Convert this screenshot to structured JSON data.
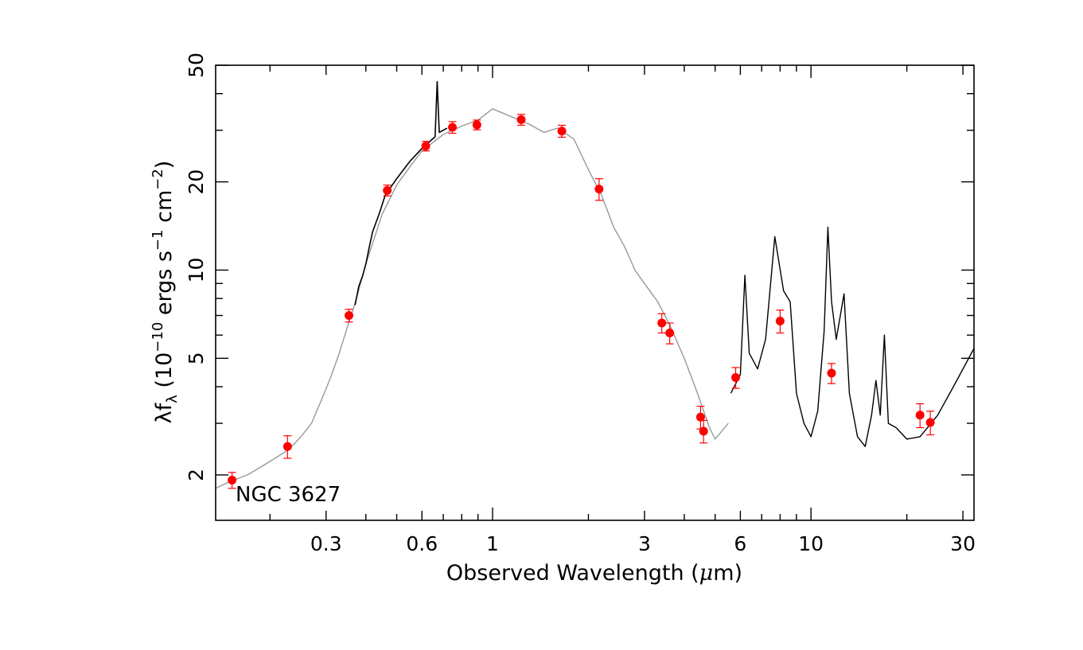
{
  "chart_data": {
    "type": "scatter",
    "title": "",
    "annotation": "NGC 3627",
    "xlabel": {
      "pre": "Observed Wavelength (",
      "mu": "μ",
      "post": "m)"
    },
    "ylabel": {
      "lambda": "λ",
      "f": "f",
      "sub": "λ",
      "pre": " (10",
      "sup1": "−10",
      "mid": " ergs s",
      "sup2": "−1",
      "cm": " cm",
      "sup3": "−2",
      "post": ")"
    },
    "x_scale": "log",
    "y_scale": "log",
    "xlim": [
      0.135,
      32.5
    ],
    "ylim": [
      1.4,
      50
    ],
    "x_tick_labels": [
      {
        "value": 0.3,
        "label": "0.3"
      },
      {
        "value": 0.6,
        "label": "0.6"
      },
      {
        "value": 1,
        "label": "1"
      },
      {
        "value": 3,
        "label": "3"
      },
      {
        "value": 6,
        "label": "6"
      },
      {
        "value": 10,
        "label": "10"
      },
      {
        "value": 30,
        "label": "30"
      }
    ],
    "y_tick_labels": [
      {
        "value": 2,
        "label": "2"
      },
      {
        "value": 5,
        "label": "5"
      },
      {
        "value": 10,
        "label": "10"
      },
      {
        "value": 20,
        "label": "20"
      },
      {
        "value": 50,
        "label": "50"
      }
    ],
    "colors": {
      "points": "#ff0000",
      "model": "#999999",
      "observed": "#000000",
      "axes": "#000000"
    },
    "photometry": [
      {
        "x": 0.152,
        "y": 1.92,
        "err": 0.12
      },
      {
        "x": 0.227,
        "y": 2.5,
        "err": 0.22
      },
      {
        "x": 0.354,
        "y": 7.0,
        "err": 0.35
      },
      {
        "x": 0.467,
        "y": 18.7,
        "err": 0.8
      },
      {
        "x": 0.617,
        "y": 26.5,
        "err": 1.0
      },
      {
        "x": 0.748,
        "y": 30.7,
        "err": 1.4
      },
      {
        "x": 0.893,
        "y": 31.3,
        "err": 1.2
      },
      {
        "x": 1.23,
        "y": 32.6,
        "err": 1.4
      },
      {
        "x": 1.65,
        "y": 29.8,
        "err": 1.4
      },
      {
        "x": 2.16,
        "y": 18.9,
        "err": 1.6
      },
      {
        "x": 3.4,
        "y": 6.6,
        "err": 0.5
      },
      {
        "x": 3.6,
        "y": 6.1,
        "err": 0.5
      },
      {
        "x": 4.5,
        "y": 3.15,
        "err": 0.28
      },
      {
        "x": 4.6,
        "y": 2.82,
        "err": 0.25
      },
      {
        "x": 5.8,
        "y": 4.3,
        "err": 0.35
      },
      {
        "x": 8.0,
        "y": 6.7,
        "err": 0.6
      },
      {
        "x": 11.6,
        "y": 4.45,
        "err": 0.35
      },
      {
        "x": 22.0,
        "y": 3.2,
        "err": 0.3
      },
      {
        "x": 23.7,
        "y": 3.02,
        "err": 0.28
      }
    ],
    "model_sed": [
      [
        0.135,
        1.8
      ],
      [
        0.15,
        1.9
      ],
      [
        0.17,
        2.0
      ],
      [
        0.19,
        2.15
      ],
      [
        0.21,
        2.3
      ],
      [
        0.23,
        2.45
      ],
      [
        0.25,
        2.7
      ],
      [
        0.27,
        3.0
      ],
      [
        0.29,
        3.6
      ],
      [
        0.31,
        4.3
      ],
      [
        0.33,
        5.2
      ],
      [
        0.35,
        6.4
      ],
      [
        0.37,
        7.7
      ],
      [
        0.4,
        10.5
      ],
      [
        0.45,
        15.5
      ],
      [
        0.5,
        19.5
      ],
      [
        0.55,
        22.5
      ],
      [
        0.6,
        25.5
      ],
      [
        0.7,
        29.0
      ],
      [
        0.8,
        31.0
      ],
      [
        0.9,
        32.5
      ],
      [
        1.0,
        35.5
      ],
      [
        1.1,
        34.0
      ],
      [
        1.3,
        31.5
      ],
      [
        1.45,
        29.5
      ],
      [
        1.6,
        30.5
      ],
      [
        1.8,
        28.0
      ],
      [
        2.0,
        22.0
      ],
      [
        2.2,
        18.0
      ],
      [
        2.4,
        14.0
      ],
      [
        2.6,
        12.0
      ],
      [
        2.8,
        10.0
      ],
      [
        3.0,
        9.0
      ],
      [
        3.3,
        7.8
      ],
      [
        3.6,
        6.5
      ],
      [
        4.0,
        5.0
      ],
      [
        4.4,
        3.8
      ],
      [
        4.8,
        2.9
      ],
      [
        5.0,
        2.65
      ],
      [
        5.5,
        3.0
      ]
    ],
    "optical_spectrum": [
      [
        0.37,
        7.6
      ],
      [
        0.38,
        8.8
      ],
      [
        0.39,
        9.5
      ],
      [
        0.4,
        10.5
      ],
      [
        0.41,
        12.0
      ],
      [
        0.42,
        13.5
      ],
      [
        0.44,
        15.5
      ],
      [
        0.46,
        18.0
      ],
      [
        0.5,
        20.5
      ],
      [
        0.55,
        23.5
      ],
      [
        0.6,
        26.0
      ],
      [
        0.66,
        28.5
      ],
      [
        0.67,
        44.0
      ],
      [
        0.68,
        29.5
      ],
      [
        0.72,
        30.5
      ]
    ],
    "ir_spectrum": [
      [
        5.6,
        3.8
      ],
      [
        6.0,
        4.4
      ],
      [
        6.2,
        9.6
      ],
      [
        6.4,
        5.2
      ],
      [
        6.8,
        4.6
      ],
      [
        7.2,
        5.8
      ],
      [
        7.7,
        13.0
      ],
      [
        8.2,
        8.5
      ],
      [
        8.6,
        7.8
      ],
      [
        9.0,
        3.8
      ],
      [
        9.5,
        3.0
      ],
      [
        10.0,
        2.7
      ],
      [
        10.5,
        3.3
      ],
      [
        11.0,
        6.2
      ],
      [
        11.3,
        14.0
      ],
      [
        11.6,
        7.8
      ],
      [
        12.0,
        5.8
      ],
      [
        12.7,
        8.3
      ],
      [
        13.2,
        3.8
      ],
      [
        14.0,
        2.7
      ],
      [
        14.8,
        2.5
      ],
      [
        15.5,
        3.2
      ],
      [
        16.0,
        4.2
      ],
      [
        16.5,
        3.2
      ],
      [
        17.0,
        6.0
      ],
      [
        17.5,
        3.0
      ],
      [
        18.5,
        2.9
      ],
      [
        20.0,
        2.65
      ],
      [
        22.0,
        2.7
      ],
      [
        25.0,
        3.2
      ],
      [
        28.0,
        4.0
      ],
      [
        32.5,
        5.4
      ]
    ]
  }
}
